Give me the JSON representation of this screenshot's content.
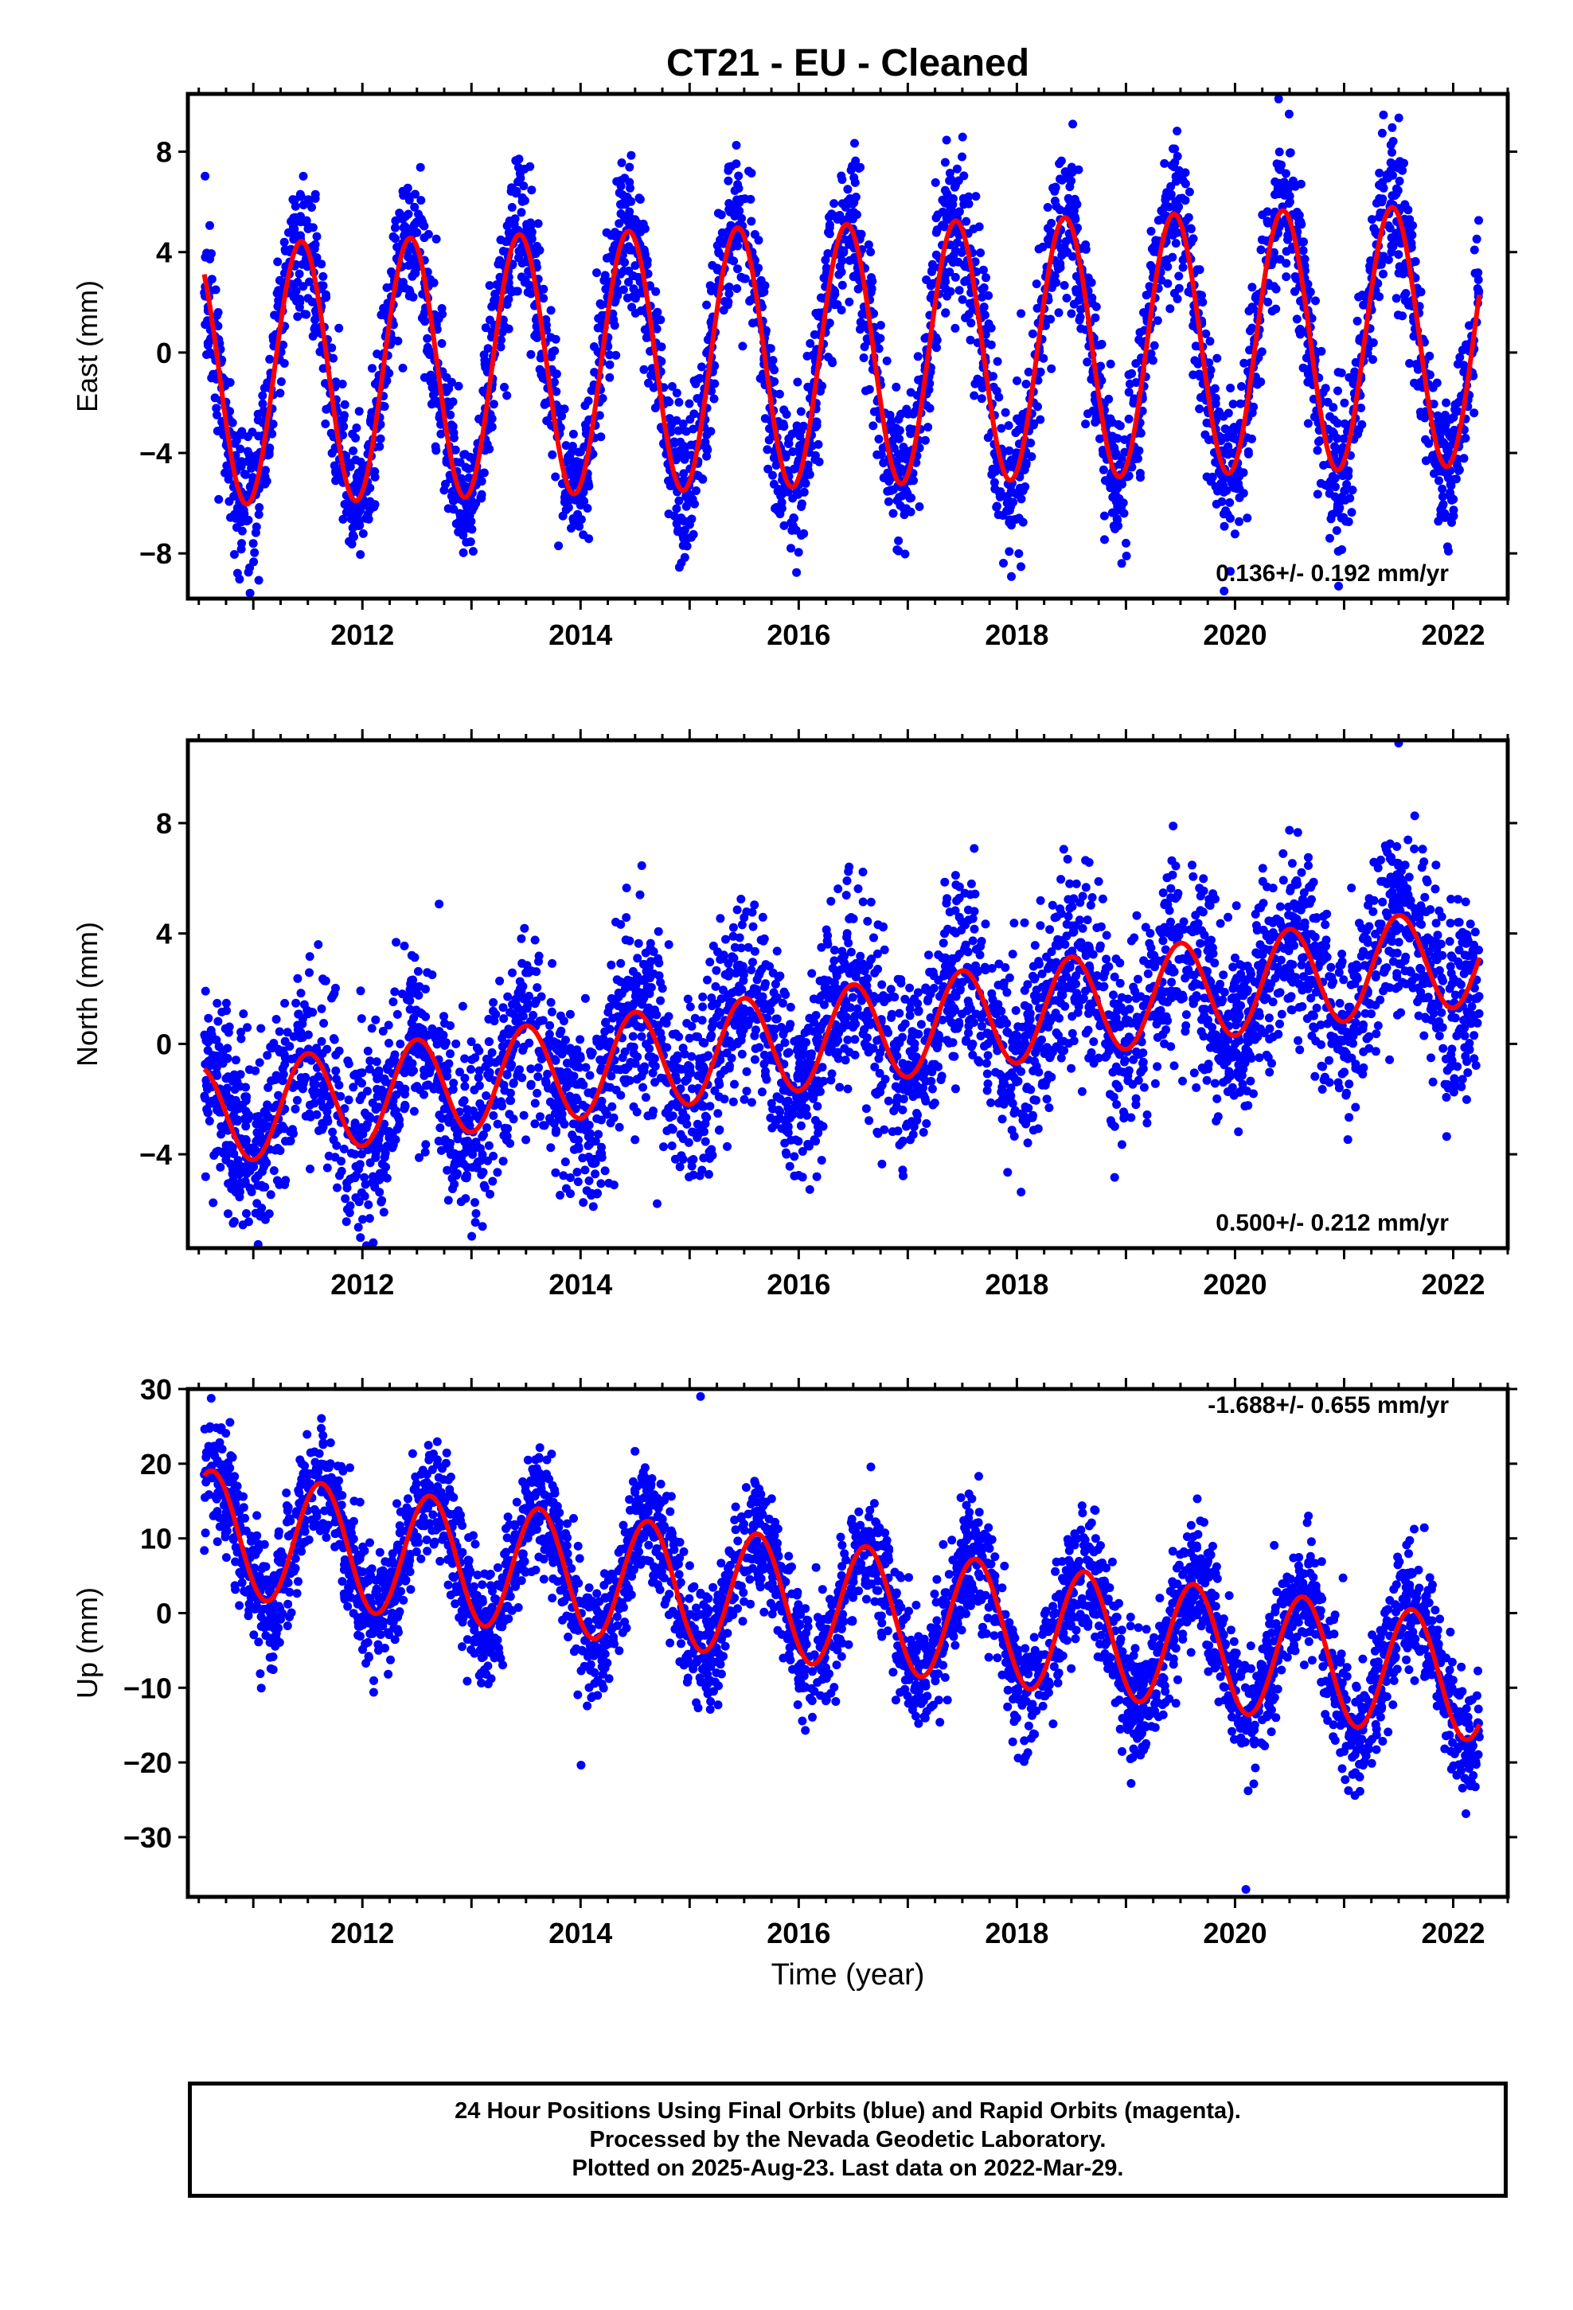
{
  "chart_data": {
    "title": "CT21  - EU - Cleaned",
    "type": "scatter",
    "xlabel": "Time (year)",
    "xlim": [
      2010.4,
      2022.5
    ],
    "x_ticks": [
      "2012",
      "2014",
      "2016",
      "2018",
      "2020",
      "2022"
    ],
    "data_span": [
      2010.55,
      2022.24
    ],
    "colors": {
      "points": "#0000ff",
      "fit": "#ff0000"
    },
    "panels": [
      {
        "ylabel": "East (mm)",
        "ylim": [
          -9.8,
          10.3
        ],
        "y_ticks": [
          8,
          4,
          0,
          -4,
          -8
        ],
        "rate_text": "0.136+/- 0.192 mm/yr",
        "trend_mm_per_yr": 0.136,
        "fit_mean_mm": -0.1,
        "seasonal_amplitude_mm": 5.2,
        "peak_phase_year_fraction": 0.44,
        "scatter_sd_mm": 1.5,
        "extremes": [
          [
            2019.9,
            -9.5
          ],
          [
            2020.4,
            10.1
          ]
        ]
      },
      {
        "ylabel": "North (mm)",
        "ylim": [
          -7.4,
          11.0
        ],
        "y_ticks": [
          8,
          4,
          0,
          -4
        ],
        "rate_text": "0.500+/- 0.212 mm/yr",
        "trend_mm_per_yr": 0.5,
        "fit_mean_mm": 0.3,
        "seasonal_amplitude_mm": 1.8,
        "peak_phase_year_fraction": 0.5,
        "scatter_sd_mm": 1.7,
        "extremes": [
          [
            2021.5,
            10.9
          ],
          [
            2012.1,
            -7.2
          ]
        ]
      },
      {
        "ylabel": "Up (mm)",
        "ylim": [
          -38,
          30
        ],
        "y_ticks": [
          30,
          20,
          10,
          0,
          -10,
          -20,
          -30
        ],
        "rate_text": "-1.688+/- 0.655 mm/yr",
        "trend_mm_per_yr": -1.688,
        "fit_mean_mm": 1.0,
        "seasonal_amplitude_mm": 8.3,
        "peak_phase_year_fraction": 0.62,
        "scatter_sd_mm": 4.0,
        "extremes": [
          [
            2015.1,
            29
          ],
          [
            2020.1,
            -37
          ]
        ]
      }
    ]
  },
  "footer": {
    "line1": "24 Hour Positions Using Final Orbits (blue) and Rapid Orbits (magenta).",
    "line2": "Processed by the Nevada Geodetic Laboratory.",
    "line3": "Plotted on 2025-Aug-23. Last data on 2022-Mar-29."
  }
}
